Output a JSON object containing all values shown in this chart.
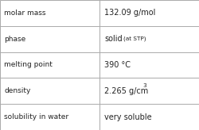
{
  "rows": [
    {
      "label": "molar mass",
      "value": "132.09 g/mol",
      "special": null
    },
    {
      "label": "phase",
      "value": "solid",
      "special": "phase"
    },
    {
      "label": "melting point",
      "value": "390 °C",
      "special": null
    },
    {
      "label": "density",
      "value": "2.265 g/cm",
      "special": "density"
    },
    {
      "label": "solubility in water",
      "value": "very soluble",
      "special": null
    }
  ],
  "col_split": 0.5,
  "bg_color": "#ffffff",
  "grid_color": "#aaaaaa",
  "label_color": "#222222",
  "value_color": "#222222",
  "label_fontsize": 6.5,
  "value_fontsize": 7.0,
  "sub_fontsize": 5.2,
  "font_family": "DejaVu Sans"
}
